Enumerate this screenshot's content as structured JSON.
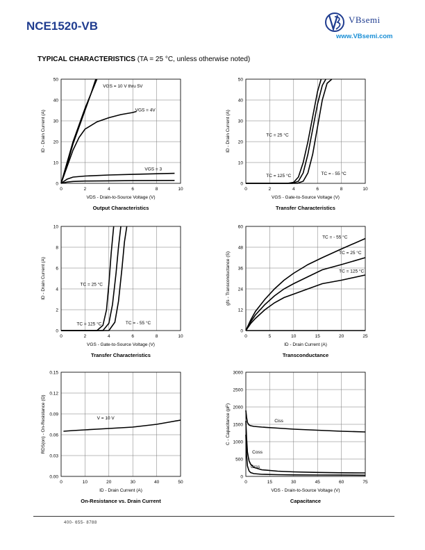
{
  "header": {
    "part_number": "NCE1520-VB",
    "brand": "VBsemi",
    "url": "www.VBsemi.com"
  },
  "section": {
    "title": "TYPICAL CHARACTERISTICS",
    "condition": "(TA = 25 °C, unless otherwise noted)"
  },
  "footer": {
    "phone": "400- 655- 8788"
  },
  "chart_data": [
    {
      "id": "output",
      "type": "line",
      "title": "Output Characteristics",
      "xlabel": "VDS - Drain-to-Source Voltage (V)",
      "ylabel": "ID - Drain Current (A)",
      "xlim": [
        0,
        10
      ],
      "ylim": [
        0,
        50
      ],
      "xticks": [
        0,
        2,
        4,
        6,
        8,
        10
      ],
      "yticks": [
        0,
        10,
        20,
        30,
        40,
        50
      ],
      "grid": true,
      "series": [
        {
          "name": "VGS = 10 V thru 5V",
          "x": [
            0,
            0.5,
            1,
            1.5,
            2,
            2.5,
            3,
            2.8
          ],
          "y": [
            0,
            10,
            20,
            28,
            36,
            43,
            50,
            48
          ]
        },
        {
          "name": "VGS = 10 V thru 5V",
          "x": [
            0,
            0.5,
            1,
            1.5,
            2,
            2.5,
            2.9
          ],
          "y": [
            0,
            9,
            19,
            27,
            35,
            43,
            50
          ]
        },
        {
          "name": "VGS = 4V",
          "x": [
            0,
            0.5,
            1,
            1.5,
            2,
            3,
            4,
            5,
            6,
            6.3
          ],
          "y": [
            0,
            8,
            16,
            22,
            26,
            29.5,
            31.5,
            33,
            34,
            34.5
          ]
        },
        {
          "name": "VGS = 3",
          "x": [
            0,
            0.5,
            1,
            2,
            4,
            6,
            8,
            9.5
          ],
          "y": [
            0,
            2,
            3,
            3.5,
            4,
            4.3,
            4.6,
            4.8
          ]
        },
        {
          "name": "",
          "x": [
            0,
            0.5,
            1,
            2,
            4,
            6,
            8,
            9.5
          ],
          "y": [
            0,
            0.6,
            0.9,
            1.1,
            1.2,
            1.3,
            1.35,
            1.4
          ]
        }
      ],
      "annotations": [
        {
          "text": "VGS = 10 V thru 5V",
          "x": 3.5,
          "y": 46
        },
        {
          "text": "VGS = 4V",
          "x": 6.2,
          "y": 34.5
        },
        {
          "text": "VGS = 3",
          "x": 7,
          "y": 6.2
        }
      ]
    },
    {
      "id": "transfer1",
      "type": "line",
      "title": "Transfer Characteristics",
      "xlabel": "VGS - Gate-to-Source Voltage (V)",
      "ylabel": "ID - Drain Current (A)",
      "xlim": [
        0,
        10
      ],
      "ylim": [
        0,
        50
      ],
      "xticks": [
        0,
        2,
        4,
        6,
        8,
        10
      ],
      "yticks": [
        0,
        10,
        20,
        30,
        40,
        50
      ],
      "grid": true,
      "series": [
        {
          "name": "TC = 125 °C",
          "x": [
            0,
            3.5,
            4,
            4.4,
            4.8,
            5.2,
            5.6,
            6.0,
            6.3
          ],
          "y": [
            0,
            0,
            0.5,
            3,
            10,
            20,
            32,
            44,
            50
          ]
        },
        {
          "name": "TC = 25 °C",
          "x": [
            0,
            3.9,
            4.4,
            4.8,
            5.2,
            5.6,
            6.0,
            6.4,
            6.7
          ],
          "y": [
            0,
            0,
            1,
            5,
            14,
            26,
            38,
            47,
            50
          ]
        },
        {
          "name": "TC = - 55 °C",
          "x": [
            0,
            4.3,
            4.8,
            5.2,
            5.6,
            6.0,
            6.4,
            6.8,
            7.2
          ],
          "y": [
            0,
            0,
            1,
            5,
            14,
            27,
            40,
            48,
            50
          ]
        }
      ],
      "annotations": [
        {
          "text": "TC = 25 °C",
          "x": 1.7,
          "y": 22.5
        },
        {
          "text": "TC = 125 °C",
          "x": 1.7,
          "y": 3
        },
        {
          "text": "TC = - 55 °C",
          "x": 6.3,
          "y": 4
        }
      ]
    },
    {
      "id": "transfer2",
      "type": "line",
      "title": "Transfer Characteristics",
      "xlabel": "VGS - Gate-to-Source Voltage (V)",
      "ylabel": "ID - Drain Current (A)",
      "xlim": [
        0,
        10
      ],
      "ylim": [
        0,
        10
      ],
      "xticks": [
        0,
        2,
        4,
        6,
        8,
        10
      ],
      "yticks": [
        0,
        2,
        4,
        6,
        8,
        10
      ],
      "grid": true,
      "series": [
        {
          "name": "TC = 125 °C",
          "x": [
            0,
            3.0,
            3.5,
            3.8,
            4.0,
            4.2,
            4.4
          ],
          "y": [
            0,
            0,
            0.5,
            2,
            4.5,
            7.5,
            10
          ]
        },
        {
          "name": "TC = 25 °C",
          "x": [
            0,
            3.5,
            4.0,
            4.3,
            4.6,
            4.8,
            5.0
          ],
          "y": [
            0,
            0,
            0.7,
            2.5,
            5.5,
            8,
            10
          ]
        },
        {
          "name": "TC = - 55 °C",
          "x": [
            0,
            4.0,
            4.5,
            4.8,
            5.1,
            5.3,
            5.5
          ],
          "y": [
            0,
            0,
            0.8,
            2.8,
            6,
            8.5,
            10
          ]
        }
      ],
      "annotations": [
        {
          "text": "TC = 25 °C",
          "x": 1.6,
          "y": 4.3
        },
        {
          "text": "TC = 125 °C",
          "x": 1.3,
          "y": 0.5
        },
        {
          "text": "TC = - 55 °C",
          "x": 5.4,
          "y": 0.6
        }
      ]
    },
    {
      "id": "transconductance",
      "type": "line",
      "title": "Transconductance",
      "xlabel": "ID - Drain Current (A)",
      "ylabel": "gfs - Transconductance (S)",
      "xlim": [
        0,
        25
      ],
      "ylim": [
        0,
        60
      ],
      "xticks": [
        0,
        5,
        10,
        15,
        20,
        25
      ],
      "yticks": [
        0,
        12,
        24,
        36,
        48,
        60
      ],
      "grid": true,
      "series": [
        {
          "name": "TC = - 55 °C",
          "x": [
            0,
            1,
            2,
            4,
            6,
            8,
            10,
            13,
            16,
            20,
            25
          ],
          "y": [
            0,
            6,
            11,
            18,
            24,
            29,
            33,
            38,
            42,
            47,
            53
          ]
        },
        {
          "name": "TC = 25 °C",
          "x": [
            0,
            1,
            2,
            4,
            6,
            8,
            10,
            13,
            16,
            20,
            25
          ],
          "y": [
            0,
            5,
            9,
            15,
            20,
            24,
            27,
            31,
            35,
            38,
            42
          ]
        },
        {
          "name": "TC = 125 °C",
          "x": [
            0,
            1,
            2,
            4,
            6,
            8,
            10,
            13,
            16,
            20,
            25
          ],
          "y": [
            0,
            4,
            7,
            12,
            16,
            19,
            21,
            24,
            27,
            29,
            32
          ]
        },
        {
          "name": "",
          "x": [
            0,
            5,
            10,
            15,
            20,
            25
          ],
          "y": [
            0,
            0,
            0,
            0,
            0,
            0
          ]
        }
      ],
      "annotations": [
        {
          "text": "TC = - 55 °C",
          "x": 16,
          "y": 53
        },
        {
          "text": "TC = 25 °C",
          "x": 19.5,
          "y": 44
        },
        {
          "text": "TC = 125 °C",
          "x": 19.5,
          "y": 33.5
        }
      ]
    },
    {
      "id": "onresistance",
      "type": "line",
      "title": "On-Resistance vs. Drain Current",
      "xlabel": "ID - Drain Current (A)",
      "ylabel": "RDS(on) - On-Resistance (Ω)",
      "xlim": [
        0,
        50
      ],
      "ylim": [
        0,
        0.15
      ],
      "xticks": [
        0,
        10,
        20,
        30,
        40,
        50
      ],
      "yticks": [
        0.0,
        0.03,
        0.06,
        0.09,
        0.12,
        0.15
      ],
      "ytick_labels": [
        "0.00",
        "0.03",
        "0.06",
        "0.09",
        "0.12",
        "0.15"
      ],
      "grid": true,
      "series": [
        {
          "name": "V = 10 V",
          "x": [
            1,
            5,
            10,
            15,
            20,
            25,
            30,
            35,
            40,
            45,
            50
          ],
          "y": [
            0.065,
            0.066,
            0.067,
            0.068,
            0.069,
            0.07,
            0.071,
            0.073,
            0.075,
            0.078,
            0.081
          ]
        }
      ],
      "annotations": [
        {
          "text": "V = 10 V",
          "x": 15,
          "y": 0.082
        }
      ]
    },
    {
      "id": "capacitance",
      "type": "line",
      "title": "Capacitance",
      "xlabel": "VDS - Drain-to-Source Voltage (V)",
      "ylabel": "C - Capacitance (pF)",
      "xlim": [
        0,
        75
      ],
      "ylim": [
        0,
        3000
      ],
      "xticks": [
        0,
        15,
        30,
        45,
        60,
        75
      ],
      "yticks": [
        0,
        500,
        1000,
        1500,
        2000,
        2500,
        3000
      ],
      "grid": true,
      "series": [
        {
          "name": "Ciss",
          "x": [
            0,
            0.5,
            1,
            2,
            3,
            5,
            10,
            20,
            30,
            45,
            60,
            75
          ],
          "y": [
            1900,
            1700,
            1550,
            1480,
            1460,
            1440,
            1420,
            1390,
            1360,
            1330,
            1300,
            1280
          ]
        },
        {
          "name": "Coss",
          "x": [
            0,
            0.5,
            1,
            2,
            3,
            5,
            10,
            20,
            30,
            45,
            60,
            75
          ],
          "y": [
            1600,
            1100,
            700,
            450,
            350,
            260,
            190,
            150,
            130,
            115,
            105,
            100
          ]
        },
        {
          "name": "Crss",
          "x": [
            0,
            0.5,
            1,
            2,
            3,
            5,
            10,
            20,
            30,
            45,
            60,
            75
          ],
          "y": [
            1200,
            600,
            300,
            160,
            110,
            80,
            60,
            50,
            45,
            40,
            38,
            35
          ]
        }
      ],
      "annotations": [
        {
          "text": "Ciss",
          "x": 18,
          "y": 1560
        },
        {
          "text": "Coss",
          "x": 4,
          "y": 660
        },
        {
          "text": "Crss",
          "x": 3,
          "y": 240
        }
      ]
    }
  ]
}
